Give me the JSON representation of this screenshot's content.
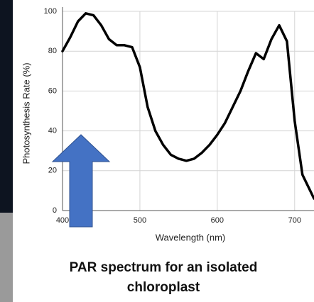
{
  "chart_data": {
    "type": "line",
    "title": "PAR spectrum for an isolated chloroplast",
    "x_label": "Wavelength (nm)",
    "y_label": "Photosynthesis Rate (%)",
    "x": [
      400,
      410,
      420,
      430,
      440,
      450,
      460,
      470,
      480,
      490,
      500,
      510,
      520,
      530,
      540,
      550,
      560,
      570,
      580,
      590,
      600,
      610,
      620,
      630,
      640,
      650,
      660,
      670,
      680,
      690,
      700,
      710,
      720,
      725
    ],
    "values": [
      80,
      87,
      95,
      99,
      98,
      93,
      86,
      83,
      83,
      82,
      72,
      52,
      40,
      33,
      28,
      26,
      25,
      26,
      29,
      33,
      38,
      44,
      52,
      60,
      70,
      79,
      76,
      86,
      93,
      85,
      45,
      18,
      10,
      6
    ],
    "color": "#000000",
    "xlim": [
      400,
      725
    ],
    "ylim": [
      0,
      100
    ],
    "xticks": [
      400,
      500,
      600,
      700
    ],
    "yticks": [
      0,
      20,
      40,
      60,
      80,
      100
    ],
    "grid": true
  }
}
